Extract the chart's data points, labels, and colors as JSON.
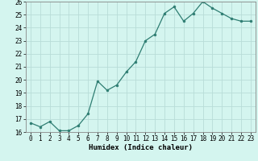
{
  "x": [
    0,
    1,
    2,
    3,
    4,
    5,
    6,
    7,
    8,
    9,
    10,
    11,
    12,
    13,
    14,
    15,
    16,
    17,
    18,
    19,
    20,
    21,
    22,
    23
  ],
  "y": [
    16.7,
    16.4,
    16.8,
    16.1,
    16.1,
    16.5,
    17.4,
    19.9,
    19.2,
    19.6,
    20.6,
    21.4,
    23.0,
    23.5,
    25.1,
    25.6,
    24.5,
    25.1,
    26.0,
    25.5,
    25.1,
    24.7,
    24.5,
    24.5
  ],
  "line_color": "#2e7d72",
  "marker_color": "#2e7d72",
  "bg_color": "#d4f5ef",
  "grid_color": "#b8ddd8",
  "xlabel": "Humidex (Indice chaleur)",
  "ylim": [
    16,
    26
  ],
  "xlim": [
    -0.5,
    23.5
  ],
  "yticks": [
    16,
    17,
    18,
    19,
    20,
    21,
    22,
    23,
    24,
    25,
    26
  ],
  "xticks": [
    0,
    1,
    2,
    3,
    4,
    5,
    6,
    7,
    8,
    9,
    10,
    11,
    12,
    13,
    14,
    15,
    16,
    17,
    18,
    19,
    20,
    21,
    22,
    23
  ],
  "tick_fontsize": 5.5,
  "label_fontsize": 6.5
}
